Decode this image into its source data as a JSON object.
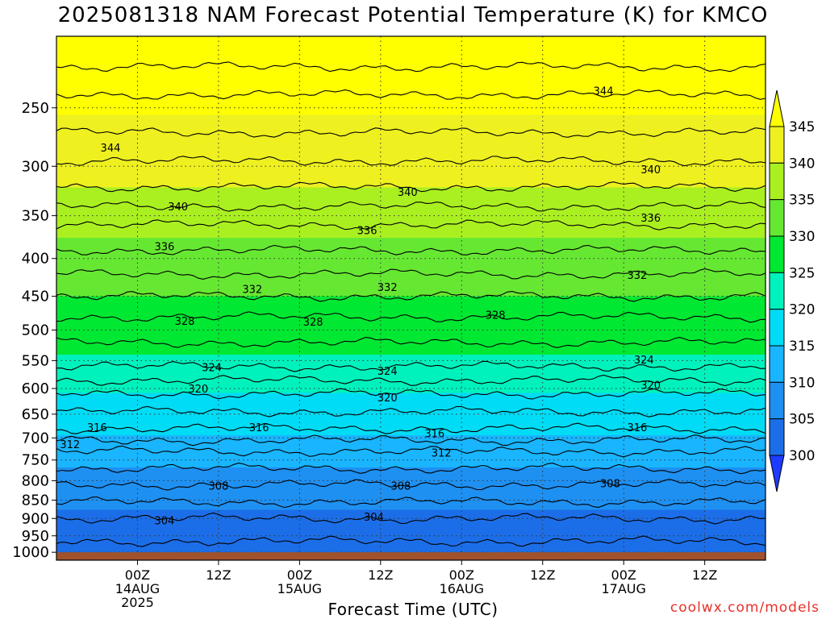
{
  "title": "2025081318 NAM Forecast Potential Temperature (K) for KMCO",
  "credit": "coolwx.com/models",
  "chart_data": {
    "type": "heatmap",
    "title": "2025081318 NAM Forecast Potential Temperature (K) for KMCO",
    "xlabel": "Forecast Time (UTC)",
    "ylabel": "",
    "y_axis": {
      "scale": "log",
      "reversed": true,
      "range": [
        200,
        1025
      ],
      "ticks": [
        250,
        300,
        350,
        400,
        450,
        500,
        550,
        600,
        650,
        700,
        750,
        800,
        850,
        900,
        950,
        1000
      ]
    },
    "x_axis": {
      "range_hours": [
        -6,
        99
      ],
      "start_valid": "2025-08-13 18Z",
      "ticks": [
        {
          "hour": 6,
          "label": "00Z",
          "sub": "14AUG",
          "sub2": "2025"
        },
        {
          "hour": 18,
          "label": "12Z",
          "sub": "",
          "sub2": ""
        },
        {
          "hour": 30,
          "label": "00Z",
          "sub": "15AUG",
          "sub2": ""
        },
        {
          "hour": 42,
          "label": "12Z",
          "sub": "",
          "sub2": ""
        },
        {
          "hour": 54,
          "label": "00Z",
          "sub": "16AUG",
          "sub2": ""
        },
        {
          "hour": 66,
          "label": "12Z",
          "sub": "",
          "sub2": ""
        },
        {
          "hour": 78,
          "label": "00Z",
          "sub": "17AUG",
          "sub2": ""
        },
        {
          "hour": 90,
          "label": "12Z",
          "sub": "",
          "sub2": ""
        }
      ]
    },
    "grid": true,
    "colorbar": {
      "levels": [
        300,
        305,
        310,
        315,
        320,
        325,
        330,
        335,
        340,
        345
      ],
      "colors": [
        "#1e3cff",
        "#1c6ee8",
        "#1e90f2",
        "#19b5ff",
        "#00dcf5",
        "#00f2bc",
        "#00e832",
        "#66e832",
        "#aaf020",
        "#eef020",
        "#ffff00"
      ],
      "extends": "both"
    },
    "contour_interval": 2,
    "contour_labels": [
      {
        "hour": 2,
        "value": 344,
        "p": 283
      },
      {
        "hour": 12,
        "value": 340,
        "p": 340
      },
      {
        "hour": 46,
        "value": 340,
        "p": 325
      },
      {
        "hour": 82,
        "value": 340,
        "p": 303
      },
      {
        "hour": 75,
        "value": 344,
        "p": 237
      },
      {
        "hour": 10,
        "value": 336,
        "p": 385
      },
      {
        "hour": 40,
        "value": 336,
        "p": 366
      },
      {
        "hour": 82,
        "value": 336,
        "p": 352
      },
      {
        "hour": 23,
        "value": 332,
        "p": 440
      },
      {
        "hour": 43,
        "value": 332,
        "p": 437
      },
      {
        "hour": 80,
        "value": 332,
        "p": 421
      },
      {
        "hour": 13,
        "value": 328,
        "p": 486
      },
      {
        "hour": 32,
        "value": 328,
        "p": 487
      },
      {
        "hour": 59,
        "value": 328,
        "p": 477
      },
      {
        "hour": 17,
        "value": 324,
        "p": 561
      },
      {
        "hour": 43,
        "value": 324,
        "p": 568
      },
      {
        "hour": 81,
        "value": 324,
        "p": 548
      },
      {
        "hour": 15,
        "value": 320,
        "p": 600
      },
      {
        "hour": 43,
        "value": 320,
        "p": 617
      },
      {
        "hour": 82,
        "value": 320,
        "p": 593
      },
      {
        "hour": 0,
        "value": 316,
        "p": 677
      },
      {
        "hour": 24,
        "value": 316,
        "p": 677
      },
      {
        "hour": 50,
        "value": 316,
        "p": 690
      },
      {
        "hour": 80,
        "value": 316,
        "p": 677
      },
      {
        "hour": -4,
        "value": 312,
        "p": 714
      },
      {
        "hour": 51,
        "value": 312,
        "p": 733
      },
      {
        "hour": 18,
        "value": 308,
        "p": 812
      },
      {
        "hour": 45,
        "value": 308,
        "p": 812
      },
      {
        "hour": 76,
        "value": 308,
        "p": 806
      },
      {
        "hour": 10,
        "value": 304,
        "p": 905
      },
      {
        "hour": 41,
        "value": 304,
        "p": 895
      }
    ]
  }
}
